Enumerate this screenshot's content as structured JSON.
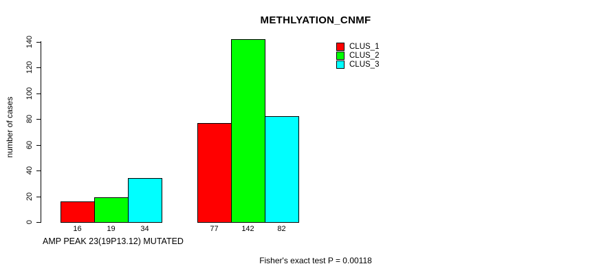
{
  "title": "METHLYATION_CNMF",
  "ylabel": "number of cases",
  "xlabel": "AMP PEAK 23(19P13.12) MUTATED",
  "footer": "Fisher's exact test P = 0.00118",
  "colors": {
    "clus_1": "#ff0000",
    "clus_2": "#00ff00",
    "clus_3": "#00ffff",
    "axis": "#000000",
    "background": "#ffffff"
  },
  "chart_data": {
    "type": "bar",
    "title": "METHLYATION_CNMF",
    "xlabel": "AMP PEAK 23(19P13.12) MUTATED",
    "ylabel": "number of cases",
    "ylim": [
      0,
      140
    ],
    "yticks": [
      0,
      20,
      40,
      60,
      80,
      100,
      120,
      140
    ],
    "grid": false,
    "legend_position": "top-right",
    "groups": 2,
    "series": [
      {
        "name": "CLUS_1",
        "color": "#ff0000",
        "values": [
          16,
          77
        ]
      },
      {
        "name": "CLUS_2",
        "color": "#00ff00",
        "values": [
          19,
          142
        ]
      },
      {
        "name": "CLUS_3",
        "color": "#00ffff",
        "values": [
          34,
          82
        ]
      }
    ],
    "bar_value_labels": [
      [
        "16",
        "19",
        "34"
      ],
      [
        "77",
        "142",
        "82"
      ]
    ]
  }
}
